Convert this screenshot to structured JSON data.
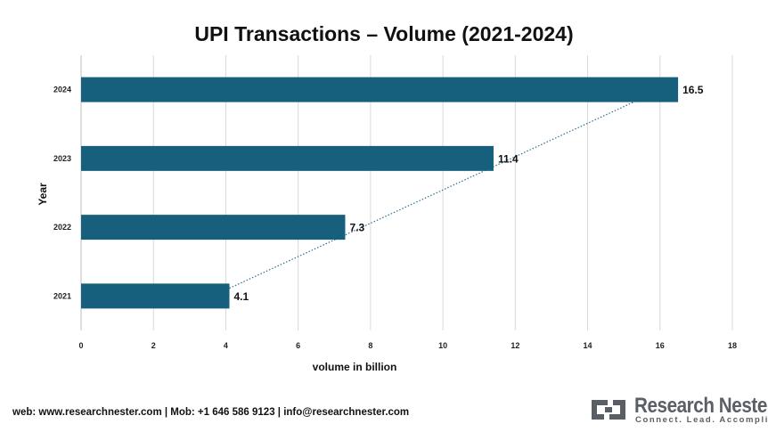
{
  "chart_data": {
    "type": "bar",
    "orientation": "horizontal",
    "title": "UPI Transactions – Volume (2021-2024)",
    "xlabel": "volume in billion",
    "ylabel": "Year",
    "categories": [
      "2021",
      "2022",
      "2023",
      "2024"
    ],
    "values": [
      4.1,
      7.3,
      11.4,
      16.5
    ],
    "data_labels": [
      "4.1",
      "7.3",
      "11.4",
      "16.5"
    ],
    "xlim": [
      0,
      18
    ],
    "x_ticks": [
      "0",
      "2",
      "4",
      "6",
      "8",
      "10",
      "12",
      "14",
      "16",
      "18"
    ],
    "grid": "vertical",
    "trendline": "dotted linear",
    "bar_color": "#17607d",
    "trendline_color": "#2c6f8f"
  },
  "footer": {
    "contact": "web: www.researchnester.com | Mob: +1 646 586 9123 | info@researchnester.com"
  },
  "logo": {
    "name": "Research Nester",
    "tagline": "Connect. Lead. Accomplish"
  },
  "colors": {
    "grid": "#d9d9d9",
    "axis": "#bfbfbf",
    "text": "#111111",
    "logo_gray": "#5a5f66"
  }
}
